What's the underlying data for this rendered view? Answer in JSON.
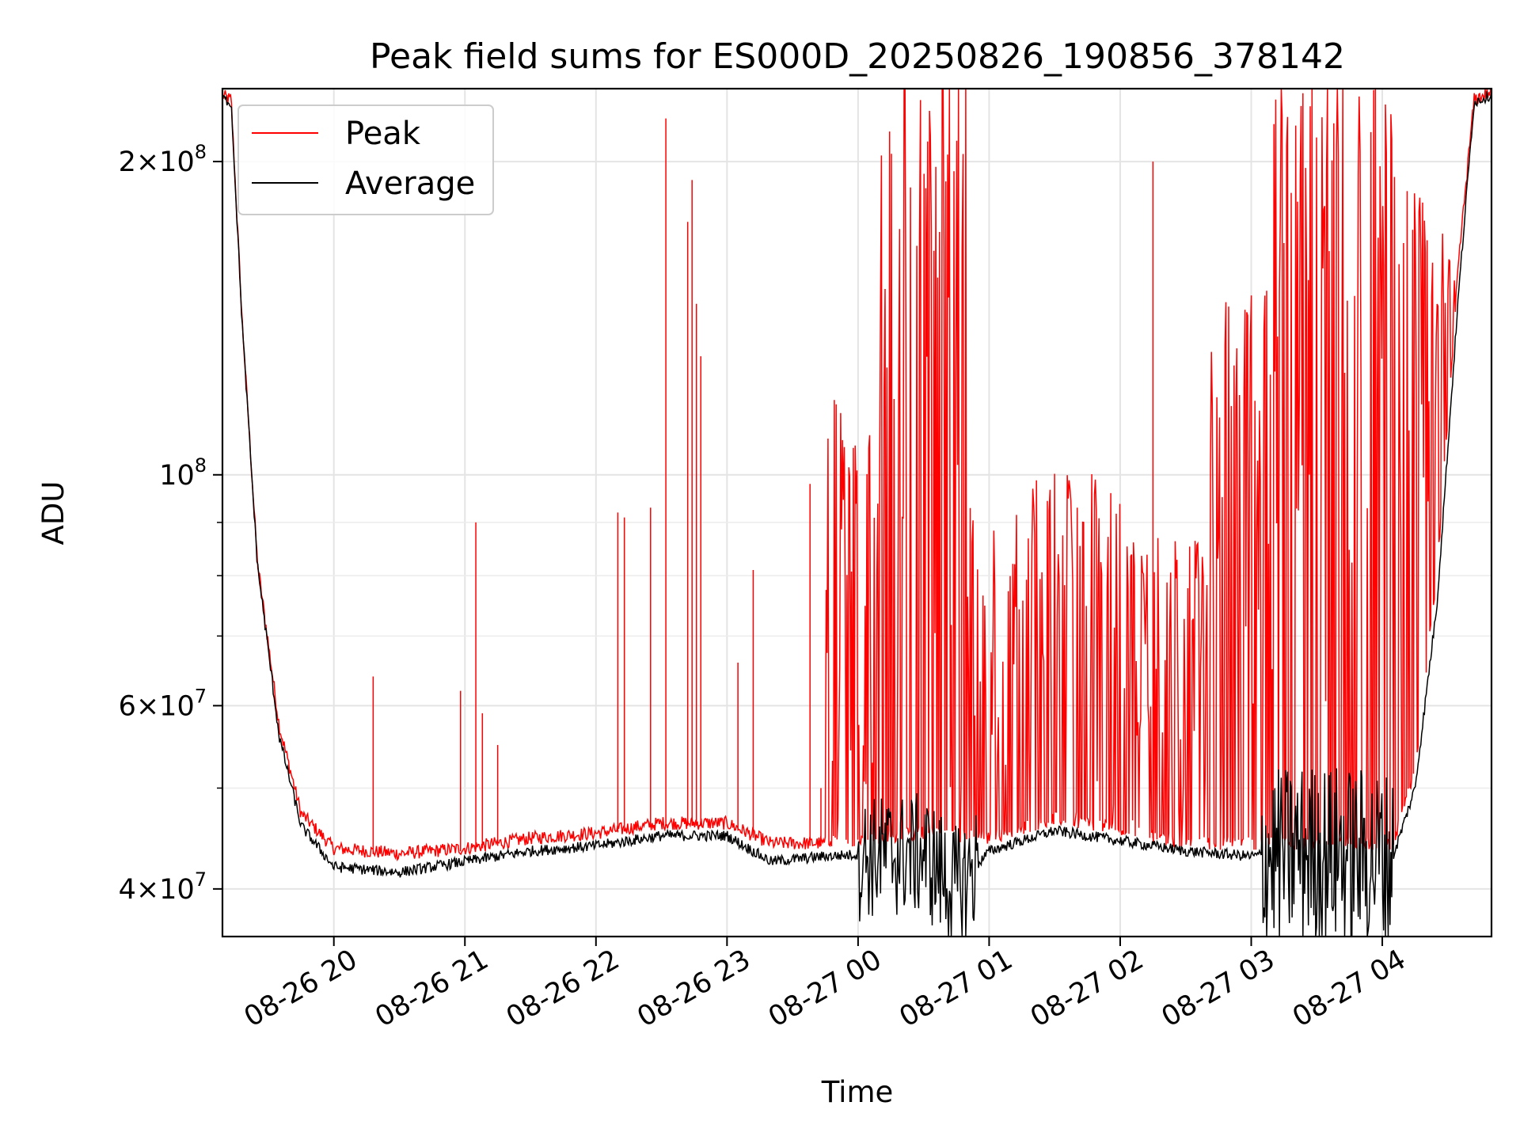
{
  "chart_data": {
    "type": "line",
    "title": "Peak field sums for ES000D_20250826_190856_378142",
    "xlabel": "Time",
    "ylabel": "ADU",
    "y_scale": "log",
    "ylim": [
      36000000,
      235000000
    ],
    "xlim": [
      "2025-08-26 19:09",
      "2025-08-27 04:50"
    ],
    "x_ticks": [
      {
        "value": "2025-08-26 20:00",
        "label": "08-26 20"
      },
      {
        "value": "2025-08-26 21:00",
        "label": "08-26 21"
      },
      {
        "value": "2025-08-26 22:00",
        "label": "08-26 22"
      },
      {
        "value": "2025-08-26 23:00",
        "label": "08-26 23"
      },
      {
        "value": "2025-08-27 00:00",
        "label": "08-27 00"
      },
      {
        "value": "2025-08-27 01:00",
        "label": "08-27 01"
      },
      {
        "value": "2025-08-27 02:00",
        "label": "08-27 02"
      },
      {
        "value": "2025-08-27 03:00",
        "label": "08-27 03"
      },
      {
        "value": "2025-08-27 04:00",
        "label": "08-27 04"
      }
    ],
    "y_ticks": [
      {
        "value": 40000000,
        "mantissa": "4",
        "base": "10",
        "exp": "7"
      },
      {
        "value": 60000000,
        "mantissa": "6",
        "base": "10",
        "exp": "7"
      },
      {
        "value": 100000000,
        "mantissa": "",
        "base": "10",
        "exp": "8"
      },
      {
        "value": 200000000,
        "mantissa": "2",
        "base": "10",
        "exp": "8"
      }
    ],
    "y_minor_gridlines": [
      50000000,
      70000000,
      80000000,
      90000000
    ],
    "grid": true,
    "legend_position": "upper-left",
    "series": [
      {
        "name": "Peak",
        "color": "#ff0000",
        "baseline_points": [
          [
            "2025-08-26 19:09",
            230000000
          ],
          [
            "2025-08-26 19:13",
            228000000
          ],
          [
            "2025-08-26 19:18",
            140000000
          ],
          [
            "2025-08-26 19:25",
            82000000
          ],
          [
            "2025-08-26 19:35",
            57000000
          ],
          [
            "2025-08-26 19:45",
            47000000
          ],
          [
            "2025-08-26 20:00",
            43500000
          ],
          [
            "2025-08-26 20:30",
            43000000
          ],
          [
            "2025-08-26 21:00",
            43500000
          ],
          [
            "2025-08-26 21:30",
            44500000
          ],
          [
            "2025-08-26 22:00",
            45000000
          ],
          [
            "2025-08-26 22:30",
            46000000
          ],
          [
            "2025-08-26 23:00",
            46000000
          ],
          [
            "2025-08-26 23:20",
            44000000
          ],
          [
            "2025-08-26 23:45",
            44000000
          ],
          [
            "2025-08-27 00:30",
            45000000
          ],
          [
            "2025-08-27 01:00",
            44500000
          ],
          [
            "2025-08-27 01:30",
            46500000
          ],
          [
            "2025-08-27 02:00",
            45500000
          ],
          [
            "2025-08-27 02:30",
            44000000
          ],
          [
            "2025-08-27 03:00",
            44000000
          ],
          [
            "2025-08-27 03:30",
            44000000
          ],
          [
            "2025-08-27 04:05",
            44000000
          ],
          [
            "2025-08-27 04:15",
            52000000
          ],
          [
            "2025-08-27 04:25",
            80000000
          ],
          [
            "2025-08-27 04:35",
            160000000
          ],
          [
            "2025-08-27 04:42",
            228000000
          ],
          [
            "2025-08-27 04:50",
            232000000
          ]
        ],
        "spikes": [
          [
            "2025-08-26 20:18",
            64000000
          ],
          [
            "2025-08-26 20:58",
            62000000
          ],
          [
            "2025-08-26 21:05",
            90000000
          ],
          [
            "2025-08-26 21:08",
            59000000
          ],
          [
            "2025-08-26 21:15",
            55000000
          ],
          [
            "2025-08-26 22:10",
            92000000
          ],
          [
            "2025-08-26 22:13",
            91000000
          ],
          [
            "2025-08-26 22:25",
            93000000
          ],
          [
            "2025-08-26 22:32",
            220000000
          ],
          [
            "2025-08-26 22:42",
            175000000
          ],
          [
            "2025-08-26 22:44",
            192000000
          ],
          [
            "2025-08-26 22:46",
            146000000
          ],
          [
            "2025-08-26 22:48",
            130000000
          ],
          [
            "2025-08-26 23:05",
            66000000
          ],
          [
            "2025-08-26 23:12",
            81000000
          ],
          [
            "2025-08-26 23:38",
            98000000
          ],
          [
            "2025-08-26 23:43",
            50000000
          ],
          [
            "2025-08-27 02:15",
            200000000
          ]
        ],
        "dense_regions": [
          [
            "2025-08-26 23:45",
            "2025-08-27 00:10",
            100000000
          ],
          [
            "2025-08-27 00:10",
            "2025-08-27 00:50",
            200000000
          ],
          [
            "2025-08-27 00:50",
            "2025-08-27 01:20",
            80000000
          ],
          [
            "2025-08-27 01:20",
            "2025-08-27 02:00",
            85000000
          ],
          [
            "2025-08-27 02:00",
            "2025-08-27 02:40",
            75000000
          ],
          [
            "2025-08-27 02:40",
            "2025-08-27 03:10",
            120000000
          ],
          [
            "2025-08-27 03:10",
            "2025-08-27 04:10",
            190000000
          ],
          [
            "2025-08-27 04:10",
            "2025-08-27 04:35",
            150000000
          ]
        ]
      },
      {
        "name": "Average",
        "color": "#000000",
        "baseline_points": [
          [
            "2025-08-26 19:09",
            230000000
          ],
          [
            "2025-08-26 19:13",
            228000000
          ],
          [
            "2025-08-26 19:18",
            140000000
          ],
          [
            "2025-08-26 19:25",
            82000000
          ],
          [
            "2025-08-26 19:35",
            56000000
          ],
          [
            "2025-08-26 19:45",
            46000000
          ],
          [
            "2025-08-26 20:00",
            42000000
          ],
          [
            "2025-08-26 20:30",
            41500000
          ],
          [
            "2025-08-26 21:00",
            42500000
          ],
          [
            "2025-08-26 21:30",
            43500000
          ],
          [
            "2025-08-26 22:00",
            44000000
          ],
          [
            "2025-08-26 22:30",
            45000000
          ],
          [
            "2025-08-26 23:00",
            45000000
          ],
          [
            "2025-08-26 23:20",
            42500000
          ],
          [
            "2025-08-26 23:45",
            43000000
          ],
          [
            "2025-08-27 00:30",
            43500000
          ],
          [
            "2025-08-27 00:45",
            40000000
          ],
          [
            "2025-08-27 01:00",
            43500000
          ],
          [
            "2025-08-27 01:30",
            45500000
          ],
          [
            "2025-08-27 02:00",
            44500000
          ],
          [
            "2025-08-27 02:30",
            43500000
          ],
          [
            "2025-08-27 03:00",
            43000000
          ],
          [
            "2025-08-27 03:30",
            44000000
          ],
          [
            "2025-08-27 04:05",
            43000000
          ],
          [
            "2025-08-27 04:15",
            50000000
          ],
          [
            "2025-08-27 04:25",
            75000000
          ],
          [
            "2025-08-27 04:35",
            150000000
          ],
          [
            "2025-08-27 04:42",
            228000000
          ],
          [
            "2025-08-27 04:50",
            232000000
          ]
        ],
        "noisy_regions": [
          [
            "2025-08-27 00:00",
            "2025-08-27 00:55",
            6000000
          ],
          [
            "2025-08-27 03:05",
            "2025-08-27 04:05",
            9000000
          ]
        ]
      }
    ]
  }
}
